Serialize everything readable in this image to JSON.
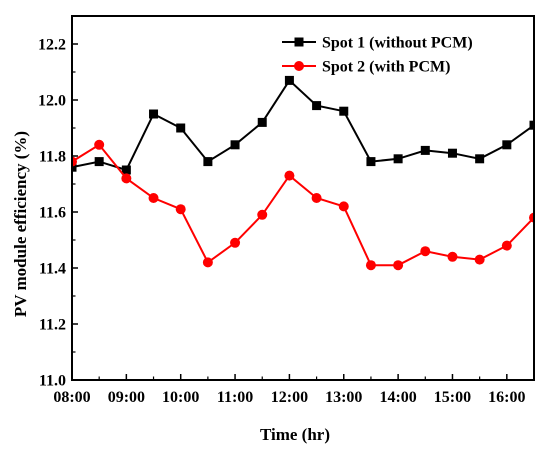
{
  "chart_data": {
    "type": "line",
    "xlabel": "Time (hr)",
    "ylabel": "PV module efficiency (%)",
    "x": [
      "08:00",
      "08:30",
      "09:00",
      "09:30",
      "10:00",
      "10:30",
      "11:00",
      "11:30",
      "12:00",
      "12:30",
      "13:00",
      "13:30",
      "14:00",
      "14:30",
      "15:00",
      "15:30",
      "16:00",
      "16:30"
    ],
    "x_tick_labels": [
      "08:00",
      "09:00",
      "10:00",
      "11:00",
      "12:00",
      "13:00",
      "14:00",
      "15:00",
      "16:00"
    ],
    "xlim": [
      "08:00",
      "16:30"
    ],
    "ylim": [
      11.0,
      12.3
    ],
    "y_ticks": [
      11.0,
      11.2,
      11.4,
      11.6,
      11.8,
      12.0,
      12.2
    ],
    "y_tick_labels": [
      "11.0",
      "11.2",
      "11.4",
      "11.6",
      "11.8",
      "12.0",
      "12.2"
    ],
    "grid": false,
    "legend_position": "top-right",
    "series": [
      {
        "name": "Spot 1 (without PCM)",
        "color": "#000000",
        "marker": "square",
        "values": [
          11.76,
          11.78,
          11.75,
          11.95,
          11.9,
          11.78,
          11.84,
          11.92,
          12.07,
          11.98,
          11.96,
          11.78,
          11.79,
          11.82,
          11.81,
          11.79,
          11.84,
          11.91
        ]
      },
      {
        "name": "Spot 2 (with PCM)",
        "color": "#ff0000",
        "marker": "circle",
        "values": [
          11.78,
          11.84,
          11.72,
          11.65,
          11.61,
          11.42,
          11.49,
          11.59,
          11.73,
          11.65,
          11.62,
          11.41,
          11.41,
          11.46,
          11.44,
          11.43,
          11.48,
          11.58
        ]
      }
    ]
  }
}
